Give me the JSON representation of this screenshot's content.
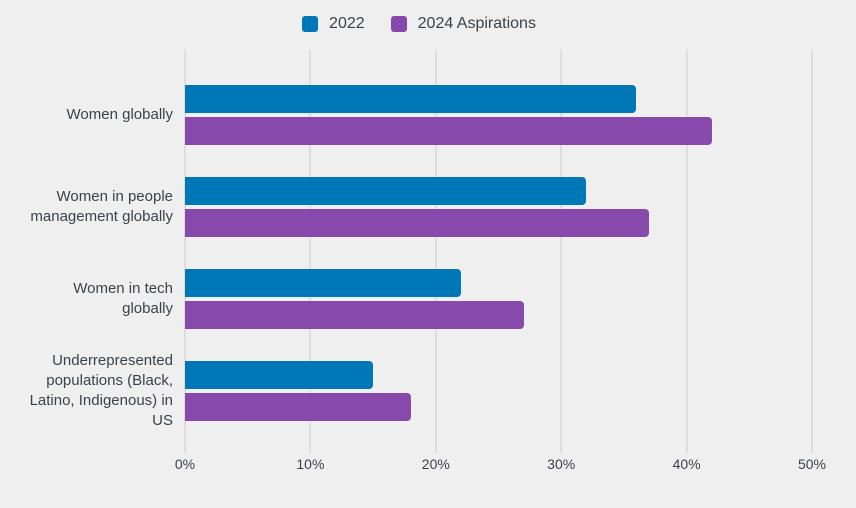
{
  "chart_data": {
    "type": "bar",
    "orientation": "horizontal",
    "title": "",
    "categories": [
      "Women globally",
      "Women in people management globally",
      "Women in tech globally",
      "Underrepresented populations (Black, Latino, Indigenous) in US"
    ],
    "series": [
      {
        "name": "2022",
        "color": "#0077b6",
        "values": [
          36,
          32,
          22,
          15
        ]
      },
      {
        "name": "2024 Aspirations",
        "color": "#8849ad",
        "values": [
          42,
          37,
          27,
          18
        ]
      }
    ],
    "xlim": [
      0,
      50
    ],
    "x_tick_labels": [
      "0%",
      "10%",
      "20%",
      "30%",
      "40%",
      "50%"
    ],
    "grid": true,
    "legend_position": "top",
    "colors": {
      "background": "#efeff0",
      "gridline": "#dcdee0",
      "text": "#39424b"
    }
  }
}
